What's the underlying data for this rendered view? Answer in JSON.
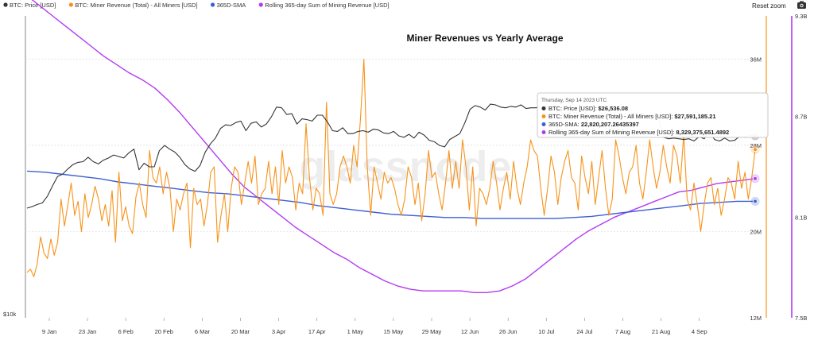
{
  "toolbar": {
    "reset_zoom_label": "Reset zoom",
    "camera_icon": "camera-icon"
  },
  "watermark": "glassnode",
  "chart_data": {
    "type": "line",
    "title": "Miner Revenues vs Yearly Average",
    "x_ticks": [
      "9 Jan",
      "23 Jan",
      "6 Feb",
      "20 Feb",
      "6 Mar",
      "20 Mar",
      "3 Apr",
      "17 Apr",
      "1 May",
      "15 May",
      "29 May",
      "12 Jun",
      "26 Jun",
      "10 Jul",
      "24 Jul",
      "7 Aug",
      "21 Aug",
      "4 Sep"
    ],
    "left_axis": {
      "label": "$10k",
      "ticks": [
        "36M",
        "28M",
        "20M",
        "12M"
      ]
    },
    "left_axis_range": [
      12,
      40
    ],
    "right_axis": {
      "ticks": [
        "9.3B",
        "8.7B",
        "8.1B",
        "7.5B"
      ]
    },
    "right_axis_range": [
      7.5,
      9.3
    ],
    "series": [
      {
        "name": "BTC: Price [USD]",
        "color": "#333333",
        "axis": "price",
        "values": [
          16700,
          16900,
          17200,
          17400,
          18300,
          19700,
          21000,
          21300,
          22000,
          22600,
          22900,
          23000,
          23600,
          23000,
          22700,
          23200,
          23500,
          23900,
          23700,
          23500,
          24200,
          24700,
          21900,
          22800,
          22300,
          22300,
          24500,
          25200,
          24700,
          24300,
          23600,
          22600,
          22000,
          21700,
          22500,
          24300,
          25400,
          26200,
          27500,
          28000,
          27900,
          28300,
          28500,
          27200,
          28200,
          28400,
          27700,
          28100,
          29100,
          30400,
          30300,
          29400,
          29500,
          28100,
          28800,
          28700,
          28500,
          29300,
          29300,
          28400,
          27200,
          27100,
          27600,
          26800,
          26800,
          27100,
          27200,
          27000,
          27400,
          27300,
          26900,
          26800,
          27100,
          26500,
          26300,
          26700,
          26200,
          27000,
          26600,
          25900,
          25700,
          25200,
          25000,
          26000,
          26400,
          26800,
          28300,
          30100,
          30600,
          30400,
          30000,
          30800,
          30700,
          30400,
          30300,
          30500,
          30400,
          30700,
          30200,
          30300,
          30300,
          30600,
          30500,
          30000,
          30000,
          29700,
          29500,
          29800,
          29600,
          29900,
          29400,
          29300,
          29400,
          29200,
          29200,
          29200,
          29200,
          29100,
          29000,
          29400,
          29500,
          29400,
          29300,
          29200,
          29100,
          26300,
          26100,
          26200,
          26100,
          26000,
          26100,
          25800,
          26400,
          26100,
          27200,
          26000,
          25800,
          26200,
          25800,
          25900,
          26500,
          26300,
          26600,
          26500
        ],
        "last_value": "$26,536.08"
      },
      {
        "name": "BTC: Miner Revenue (Total) - All Miners [USD]",
        "color": "#f7931a",
        "axis": "revenue_left",
        "values": [
          16.2,
          16.5,
          15.8,
          17.0,
          19.5,
          18.0,
          17.5,
          19.3,
          17.8,
          19.0,
          23.0,
          20.5,
          22.5,
          24.5,
          21.5,
          22.8,
          20.0,
          23.5,
          21.3,
          22.5,
          24.2,
          23.0,
          21.0,
          22.5,
          20.5,
          23.8,
          19.0,
          25.5,
          21.0,
          22.3,
          20.5,
          19.8,
          23.2,
          24.5,
          22.5,
          21.3,
          27.5,
          25.0,
          24.5,
          26.0,
          23.5,
          25.5,
          24.0,
          20.0,
          23.0,
          22.0,
          23.5,
          24.5,
          18.5,
          24.0,
          22.5,
          23.0,
          20.5,
          22.5,
          25.5,
          26.0,
          19.0,
          21.5,
          23.5,
          20.0,
          24.0,
          26.0,
          25.5,
          22.5,
          24.5,
          26.5,
          24.5,
          27.0,
          22.5,
          23.5,
          24.0,
          26.5,
          23.5,
          26.0,
          22.5,
          27.5,
          24.5,
          26.0,
          25.0,
          22.0,
          24.5,
          23.5,
          30.0,
          25.0,
          22.0,
          24.0,
          23.5,
          21.5,
          32.0,
          23.5,
          22.5,
          23.5,
          26.0,
          27.0,
          26.0,
          24.5,
          28.0,
          26.0,
          30.5,
          36.0,
          26.0,
          21.5,
          26.0,
          24.5,
          23.0,
          25.5,
          24.5,
          25.0,
          24.0,
          22.5,
          21.5,
          23.0,
          26.0,
          25.0,
          22.5,
          24.5,
          21.0,
          23.5,
          27.5,
          25.0,
          25.5,
          23.5,
          22.0,
          24.5,
          27.5,
          24.0,
          26.5,
          24.0,
          28.5,
          26.0,
          22.0,
          26.0,
          20.5,
          24.0,
          23.5,
          22.5,
          24.0,
          26.5,
          24.5,
          22.0,
          24.0,
          25.5,
          23.0,
          26.5,
          24.0,
          22.5,
          24.5,
          26.0,
          28.5,
          27.5,
          27.0,
          24.0,
          21.5,
          24.0,
          27.0,
          25.5,
          22.5,
          25.0,
          26.5,
          27.5,
          25.0,
          24.5,
          22.0,
          27.0,
          25.0,
          23.5,
          26.5,
          22.5,
          25.0,
          27.5,
          24.0,
          21.5,
          23.0,
          28.5,
          27.0,
          25.0,
          23.5,
          25.5,
          26.0,
          28.0,
          24.5,
          23.0,
          25.5,
          28.5,
          26.0,
          24.0,
          25.5,
          28.0,
          26.0,
          24.5,
          28.0,
          27.0,
          24.5,
          29.0,
          23.0,
          22.0,
          24.5,
          22.5,
          20.0,
          22.5,
          24.5,
          25.0,
          22.5,
          24.0,
          21.5,
          23.0,
          25.0,
          24.5,
          23.0,
          26.5,
          24.0,
          25.5,
          23.0,
          25.0,
          27.6
        ],
        "last_value": "$27,591,185.21"
      },
      {
        "name": "365D-SMA",
        "color": "#3d5fd1",
        "axis": "revenue_left",
        "values": [
          25.6,
          25.5,
          25.3,
          25.1,
          24.9,
          24.6,
          24.4,
          24.2,
          24.0,
          23.8,
          23.6,
          23.5,
          23.3,
          23.1,
          22.9,
          22.7,
          22.4,
          22.2,
          22.0,
          21.8,
          21.6,
          21.5,
          21.4,
          21.3,
          21.3,
          21.2,
          21.2,
          21.2,
          21.2,
          21.2,
          21.3,
          21.4,
          21.6,
          21.8,
          22.0,
          22.2,
          22.4,
          22.6,
          22.7,
          22.8,
          22.8
        ],
        "last_value": "22,820,207.26435397"
      },
      {
        "name": "Rolling 365-day Sum of Mining Revenue [USD]",
        "color": "#b23bf2",
        "axis": "sum_right",
        "values": [
          9.42,
          9.36,
          9.3,
          9.24,
          9.18,
          9.12,
          9.06,
          9.01,
          8.96,
          8.92,
          8.87,
          8.8,
          8.72,
          8.63,
          8.54,
          8.45,
          8.36,
          8.28,
          8.22,
          8.16,
          8.1,
          8.04,
          7.99,
          7.94,
          7.89,
          7.85,
          7.8,
          7.76,
          7.72,
          7.69,
          7.67,
          7.66,
          7.66,
          7.66,
          7.66,
          7.65,
          7.65,
          7.66,
          7.69,
          7.73,
          7.79,
          7.85,
          7.91,
          7.97,
          8.02,
          8.06,
          8.1,
          8.13,
          8.16,
          8.19,
          8.22,
          8.25,
          8.26,
          8.28,
          8.3,
          8.31,
          8.32,
          8.33
        ],
        "last_value": "8,329,375,651.4892"
      }
    ],
    "tooltip": {
      "date": "Thursday, Sep 14 2023 UTC",
      "rows": [
        {
          "label": "BTC: Price [USD]: ",
          "value": "$26,536.08",
          "color": "#333333"
        },
        {
          "label": "BTC: Miner Revenue (Total) - All Miners [USD]: ",
          "value": "$27,591,185.21",
          "color": "#f7931a"
        },
        {
          "label": "365D-SMA: ",
          "value": "22,820,207.26435397",
          "color": "#3d5fd1"
        },
        {
          "label": "Rolling 365-day Sum of Mining Revenue [USD]: ",
          "value": "8,329,375,651.4892",
          "color": "#b23bf2"
        }
      ]
    },
    "grid": true,
    "legend": "top-left"
  }
}
